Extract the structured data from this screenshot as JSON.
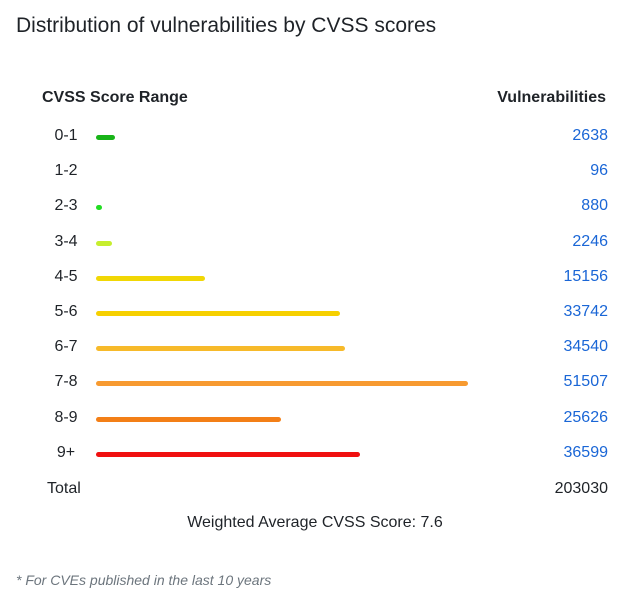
{
  "title": "Distribution of vulnerabilities by CVSS scores",
  "headers": {
    "range": "CVSS Score Range",
    "count": "Vulnerabilities"
  },
  "chart_data": {
    "type": "bar",
    "orientation": "horizontal",
    "categories": [
      "0-1",
      "1-2",
      "2-3",
      "3-4",
      "4-5",
      "5-6",
      "6-7",
      "7-8",
      "8-9",
      "9+"
    ],
    "values": [
      2638,
      96,
      880,
      2246,
      15156,
      33742,
      34540,
      51507,
      25626,
      36599
    ],
    "colors": [
      "#18b418",
      "#30c030",
      "#22dd22",
      "#c6ee2e",
      "#f1d705",
      "#f6d000",
      "#f7ba2a",
      "#f79a30",
      "#f37f17",
      "#f01010"
    ],
    "title": "Distribution of vulnerabilities by CVSS scores"
  },
  "total": {
    "label": "Total",
    "value": "203030"
  },
  "average": {
    "label": "Weighted Average CVSS Score:",
    "value": "7.6"
  },
  "footnote": "* For CVEs published in the last 10 years"
}
